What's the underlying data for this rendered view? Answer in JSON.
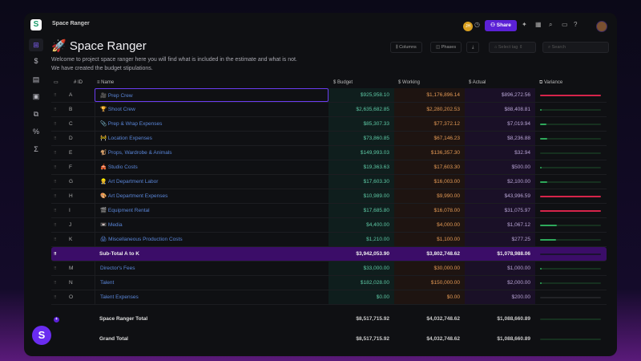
{
  "app": {
    "breadcrumb": "Space Ranger",
    "title_icon": "🚀",
    "title": "Space Ranger",
    "description": [
      "Welcome to project space ranger here you will find what is included in the estimate and what is not.",
      "We have created the budget stipulations."
    ]
  },
  "sidebar": [
    "grid-icon",
    "dollar-icon",
    "calendar-icon",
    "book-icon",
    "layers-icon",
    "percent-icon",
    "sigma-icon"
  ],
  "topbar": {
    "user_initials": "JH",
    "share": "Share"
  },
  "toolbar": {
    "columns": "Columns",
    "phases": "Phases",
    "select_tag": "Select tag",
    "search_placeholder": "Search"
  },
  "columns": {
    "id": "ID",
    "name": "Name",
    "budget": "Budget",
    "working": "Working",
    "actual": "Actual",
    "variance": "Variance"
  },
  "colors": {
    "accent": "#5b21d6",
    "over": "#d6244a",
    "under": "#2ea85a"
  },
  "rows": [
    {
      "id": "A",
      "icon": "🎥",
      "name": "Prep Crew",
      "budget": "$925,958.10",
      "working": "$1,176,896.14",
      "actual": "$896,272.56",
      "variance": 1,
      "status": "over"
    },
    {
      "id": "B",
      "icon": "🏆",
      "name": "Shoot Crew",
      "budget": "$2,635,682.85",
      "working": "$2,280,202.53",
      "actual": "$88,408.81",
      "variance": 0.03,
      "status": "under"
    },
    {
      "id": "C",
      "icon": "📎",
      "name": "Prep & Wrap Expenses",
      "budget": "$85,307.33",
      "working": "$77,372.12",
      "actual": "$7,019.94",
      "variance": 0.1,
      "status": "under"
    },
    {
      "id": "D",
      "icon": "🚧",
      "name": "Location Expenses",
      "budget": "$73,860.85",
      "working": "$67,146.23",
      "actual": "$8,236.88",
      "variance": 0.12,
      "status": "under"
    },
    {
      "id": "E",
      "icon": "🐒",
      "name": "Props, Wardrobe & Animals",
      "budget": "$149,993.03",
      "working": "$136,357.30",
      "actual": "$32.94",
      "variance": 0,
      "status": "under"
    },
    {
      "id": "F",
      "icon": "🎪",
      "name": "Studio Costs",
      "budget": "$19,363.63",
      "working": "$17,603.30",
      "actual": "$500.00",
      "variance": 0.03,
      "status": "under"
    },
    {
      "id": "G",
      "icon": "👷",
      "name": "Art Department Labor",
      "budget": "$17,603.30",
      "working": "$16,003.00",
      "actual": "$2,100.00",
      "variance": 0.12,
      "status": "under"
    },
    {
      "id": "H",
      "icon": "🎨",
      "name": "Art Department Expenses",
      "budget": "$10,989.00",
      "working": "$9,990.00",
      "actual": "$43,996.59",
      "variance": 1,
      "status": "over"
    },
    {
      "id": "I",
      "icon": "🎬",
      "name": "Equipment Rental",
      "budget": "$17,685.80",
      "working": "$16,078.00",
      "actual": "$31,075.97",
      "variance": 1,
      "status": "over"
    },
    {
      "id": "J",
      "icon": "📼",
      "name": "Media",
      "budget": "$4,400.00",
      "working": "$4,000.00",
      "actual": "$1,067.12",
      "variance": 0.27,
      "status": "under"
    },
    {
      "id": "K",
      "icon": "🖨",
      "name": "Miscellaneous Production Costs",
      "budget": "$1,210.00",
      "working": "$1,100.00",
      "actual": "$277.25",
      "variance": 0.26,
      "status": "under"
    },
    {
      "id": "",
      "icon": "",
      "name": "Sub-Total A to K",
      "budget": "$3,942,053.90",
      "working": "$3,802,748.62",
      "actual": "$1,078,988.06",
      "variance": 0,
      "status": "subtotal"
    },
    {
      "id": "M",
      "icon": "",
      "name": "Director's Fees",
      "budget": "$33,000.00",
      "working": "$30,000.00",
      "actual": "$1,000.00",
      "variance": 0.02,
      "status": "under"
    },
    {
      "id": "N",
      "icon": "",
      "name": "Talent",
      "budget": "$182,028.00",
      "working": "$150,000.00",
      "actual": "$2,000.00",
      "variance": 0.02,
      "status": "under"
    },
    {
      "id": "O",
      "icon": "",
      "name": "Talent Expenses",
      "budget": "$0.00",
      "working": "$0.00",
      "actual": "$200.00",
      "variance": 0,
      "status": "none"
    }
  ],
  "totals": [
    {
      "name": "Space Ranger Total",
      "budget": "$8,517,715.92",
      "working": "$4,032,748.62",
      "actual": "$1,088,660.89"
    },
    {
      "name": "Grand Total",
      "budget": "$8,517,715.92",
      "working": "$4,032,748.62",
      "actual": "$1,088,660.89"
    }
  ]
}
